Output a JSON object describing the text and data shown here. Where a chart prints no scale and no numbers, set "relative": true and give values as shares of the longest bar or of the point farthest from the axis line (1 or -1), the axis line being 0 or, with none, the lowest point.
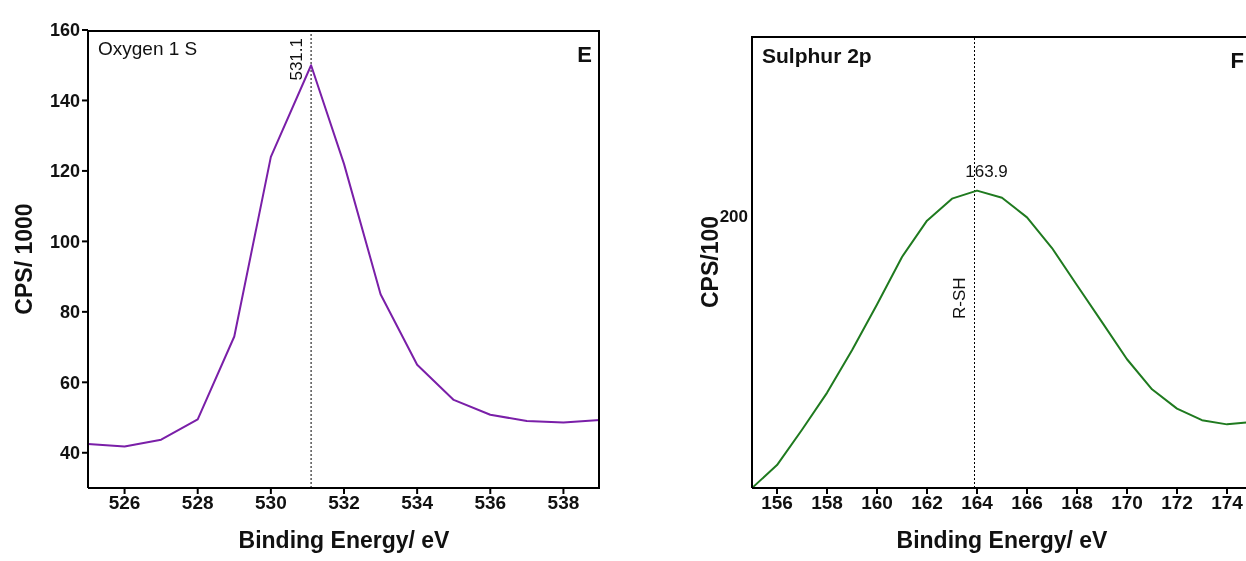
{
  "chart_data": [
    {
      "type": "line",
      "title": "Oxygen 1 S",
      "xlabel": "Binding Energy/ eV",
      "ylabel": "CPS/ 1000",
      "x": [
        525,
        526,
        527,
        528,
        529,
        530,
        531.1,
        532,
        533,
        534,
        535,
        536,
        537,
        538,
        539
      ],
      "series": [
        {
          "color": "#7a1fa8",
          "values": [
            42.5,
            41.8,
            43.7,
            49.5,
            73,
            124,
            150,
            122,
            85,
            65,
            55,
            50.8,
            49,
            48.6,
            49.3
          ]
        }
      ],
      "xlim": [
        525,
        539
      ],
      "xticks": [
        526,
        528,
        530,
        532,
        534,
        536,
        538
      ],
      "ylim": [
        30,
        160
      ],
      "yticks": [
        40,
        60,
        80,
        100,
        120,
        140,
        160
      ],
      "ref_lines": [
        {
          "axis": "x",
          "value": 531.1,
          "label": "531.1",
          "color": "#000000",
          "line_style": "dotted"
        }
      ],
      "annotations": [
        "E"
      ],
      "grid": false,
      "legend": false,
      "marker": "none",
      "line_style": "solid"
    },
    {
      "type": "line",
      "title": "Sulphur 2p",
      "xlabel": "Binding Energy/ eV",
      "ylabel": "CPS/100",
      "relative": true,
      "x": [
        155,
        156,
        157,
        158,
        159,
        160,
        161,
        162,
        163,
        164,
        165,
        166,
        167,
        168,
        169,
        170,
        171,
        172,
        173,
        174,
        175
      ],
      "series": [
        {
          "color": "#1f7a1f",
          "values": [
            0,
            0.077,
            0.196,
            0.32,
            0.463,
            0.617,
            0.777,
            0.899,
            0.973,
            1,
            0.976,
            0.91,
            0.807,
            0.682,
            0.558,
            0.433,
            0.332,
            0.267,
            0.228,
            0.214,
            0.222
          ]
        }
      ],
      "xlim": [
        155,
        175
      ],
      "xticks": [
        156,
        158,
        160,
        162,
        164,
        166,
        168,
        170,
        172,
        174
      ],
      "ref_lines": [
        {
          "axis": "x",
          "value": 163.9,
          "label": "R-SH",
          "color": "#000000",
          "line_style": "dotted"
        }
      ],
      "annotations": [
        "F",
        "200",
        {
          "text": "163.9",
          "x": 163.9,
          "y": 1
        }
      ],
      "grid": false,
      "legend": false,
      "marker": "none",
      "line_style": "solid"
    }
  ]
}
